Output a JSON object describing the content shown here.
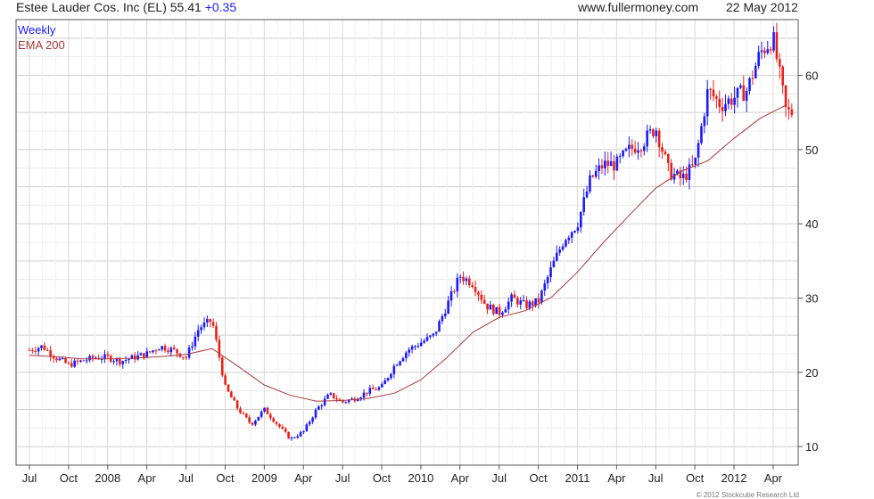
{
  "header": {
    "title": "Estee Lauder Cos. Inc (EL)",
    "price": "55.41",
    "change": "+0.35",
    "website": "www.fullermoney.com",
    "date": "22 May 2012"
  },
  "legend": {
    "weekly": "Weekly",
    "ema": "EMA 200"
  },
  "copyright": "© 2012 Stockcube Research Ltd",
  "colors": {
    "up": "#1a1aff",
    "down": "#e8201a",
    "ema": "#a83a3a",
    "grid": "#d8d8d8",
    "blue_text": "#1a1aff"
  },
  "chart_data": {
    "type": "line",
    "subtype": "weekly candlestick with EMA 200 overlay",
    "title": "Estee Lauder Cos. Inc (EL)",
    "x_tick_labels": [
      "Jul",
      "Oct",
      "2008",
      "Apr",
      "Jul",
      "Oct",
      "2009",
      "Apr",
      "Jul",
      "Oct",
      "2010",
      "Apr",
      "Jul",
      "Oct",
      "2011",
      "Apr",
      "Jul",
      "Oct",
      "2012",
      "Apr"
    ],
    "y_ticks": [
      10,
      20,
      30,
      40,
      50,
      60
    ],
    "ylim": [
      7.5,
      67.5
    ],
    "grid": true,
    "legend_position": "top-left",
    "series": [
      {
        "name": "Weekly",
        "x": [
          "2007-07",
          "2007-08",
          "2007-09",
          "2007-10",
          "2007-11",
          "2007-12",
          "2008-01",
          "2008-02",
          "2008-03",
          "2008-04",
          "2008-05",
          "2008-06",
          "2008-07",
          "2008-08",
          "2008-09",
          "2008-10",
          "2008-11",
          "2008-12",
          "2009-01",
          "2009-02",
          "2009-03",
          "2009-04",
          "2009-05",
          "2009-06",
          "2009-07",
          "2009-08",
          "2009-09",
          "2009-10",
          "2009-11",
          "2009-12",
          "2010-01",
          "2010-02",
          "2010-03",
          "2010-04",
          "2010-05",
          "2010-06",
          "2010-07",
          "2010-08",
          "2010-09",
          "2010-10",
          "2010-11",
          "2010-12",
          "2011-01",
          "2011-02",
          "2011-03",
          "2011-04",
          "2011-05",
          "2011-06",
          "2011-07",
          "2011-08",
          "2011-09",
          "2011-10",
          "2011-11",
          "2011-12",
          "2012-01",
          "2012-02",
          "2012-03",
          "2012-04",
          "2012-05"
        ],
        "y": [
          23,
          23.5,
          22,
          21,
          21.5,
          22,
          22,
          21.5,
          22,
          22.5,
          23.5,
          23,
          22,
          26,
          27,
          18,
          15,
          13,
          15,
          13,
          11,
          12,
          15,
          17,
          16,
          16.5,
          17.5,
          18,
          21,
          23,
          24,
          25,
          29,
          33,
          32,
          29,
          28,
          30,
          29,
          29.5,
          34,
          38,
          40,
          46,
          48,
          48,
          50,
          51,
          53,
          47,
          46,
          48,
          58,
          56,
          57,
          58,
          63,
          65,
          55
        ]
      },
      {
        "name": "EMA 200",
        "x": [
          "2007-07",
          "2007-09",
          "2007-11",
          "2008-01",
          "2008-03",
          "2008-05",
          "2008-07",
          "2008-09",
          "2008-11",
          "2009-01",
          "2009-03",
          "2009-05",
          "2009-07",
          "2009-09",
          "2009-11",
          "2010-01",
          "2010-03",
          "2010-05",
          "2010-07",
          "2010-09",
          "2010-11",
          "2011-01",
          "2011-03",
          "2011-05",
          "2011-07",
          "2011-09",
          "2011-11",
          "2012-01",
          "2012-03",
          "2012-05"
        ],
        "y": [
          22.3,
          22.1,
          21.8,
          21.8,
          21.9,
          22.1,
          22.4,
          23.2,
          20.8,
          18.3,
          16.9,
          16.1,
          16.2,
          16.5,
          17.2,
          19.0,
          22.0,
          25.4,
          27.4,
          28.3,
          30.1,
          33.5,
          37.5,
          41.2,
          44.8,
          47.1,
          48.5,
          51.5,
          54.2,
          56.0
        ]
      }
    ]
  }
}
